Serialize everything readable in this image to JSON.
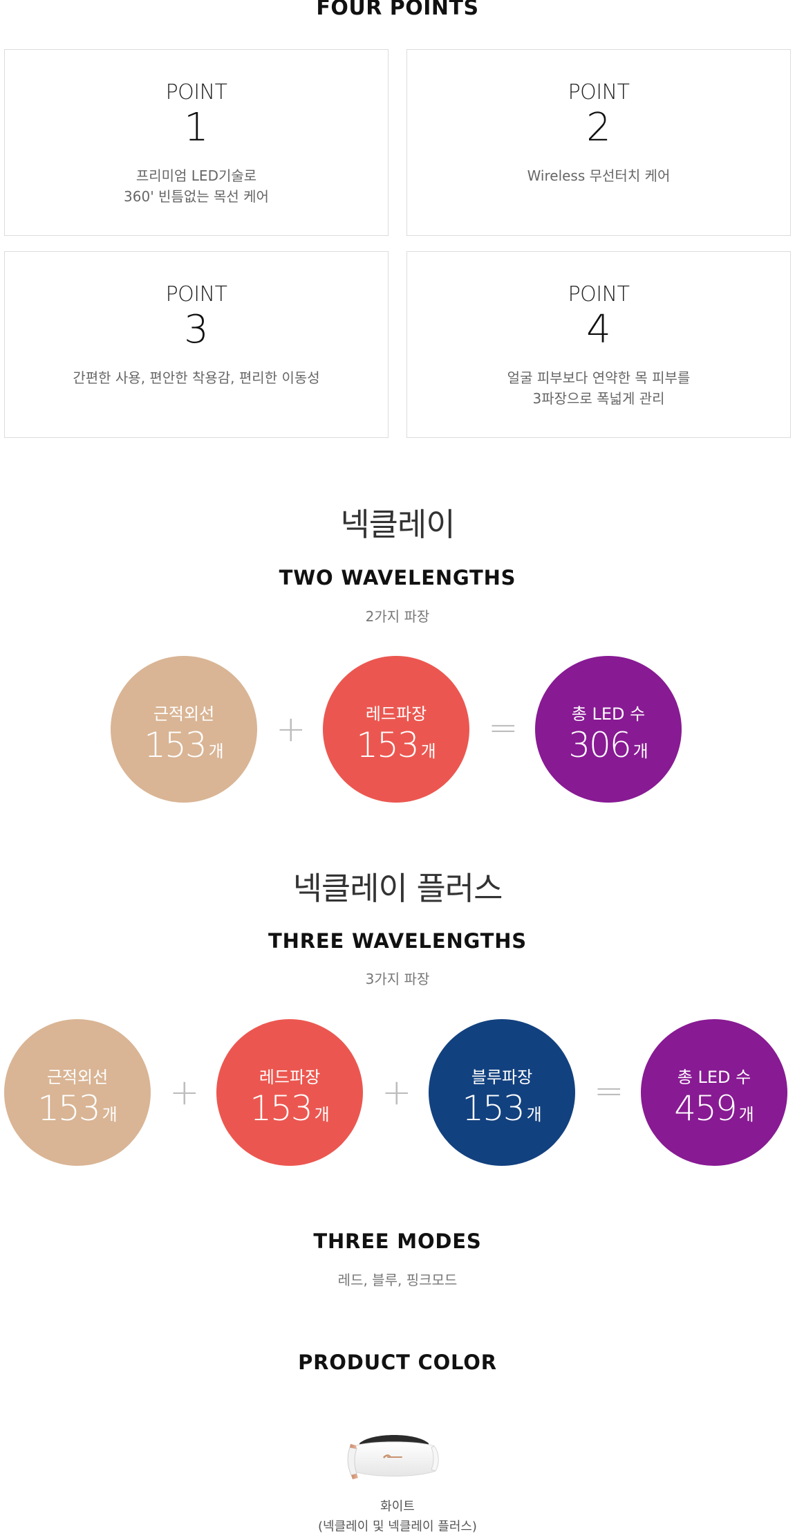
{
  "four_points": {
    "title": "FOUR POINTS",
    "points": [
      {
        "label": "POINT",
        "num": "1",
        "desc": "프리미엄 LED기술로\n360' 빈틈없는 목선 케어"
      },
      {
        "label": "POINT",
        "num": "2",
        "desc": "Wireless 무선터치 케어"
      },
      {
        "label": "POINT",
        "num": "3",
        "desc": "간편한 사용, 편안한 착용감, 편리한 이동성"
      },
      {
        "label": "POINT",
        "num": "4",
        "desc": "얼굴 피부보다 연약한 목 피부를\n3파장으로 폭넓게 관리"
      }
    ]
  },
  "necklay": {
    "kr_title": "넥클레이",
    "en_title": "TWO WAVELENGTHS",
    "sub": "2가지 파장",
    "circles": [
      {
        "label": "근적외선",
        "value": "153",
        "unit": "개",
        "color": "#D9B595"
      },
      {
        "label": "레드파장",
        "value": "153",
        "unit": "개",
        "color": "#EB5750"
      },
      {
        "label": "총 LED 수",
        "value": "306",
        "unit": "개",
        "color": "#881A93"
      }
    ],
    "ops": [
      "+",
      "="
    ]
  },
  "necklay_plus": {
    "kr_title": "넥클레이 플러스",
    "en_title": "THREE WAVELENGTHS",
    "sub": "3가지 파장",
    "circles": [
      {
        "label": "근적외선",
        "value": "153",
        "unit": "개",
        "color": "#D9B595"
      },
      {
        "label": "레드파장",
        "value": "153",
        "unit": "개",
        "color": "#EB5750"
      },
      {
        "label": "블루파장",
        "value": "153",
        "unit": "개",
        "color": "#12417F"
      },
      {
        "label": "총 LED 수",
        "value": "459",
        "unit": "개",
        "color": "#881A93"
      }
    ],
    "ops": [
      "+",
      "+",
      "="
    ]
  },
  "modes": {
    "title": "THREE MODES",
    "sub": "레드, 블루, 핑크모드"
  },
  "product_color": {
    "title": "PRODUCT COLOR",
    "name": "화이트",
    "sub": "(넥클레이 및 넥클레이 플러스)"
  }
}
